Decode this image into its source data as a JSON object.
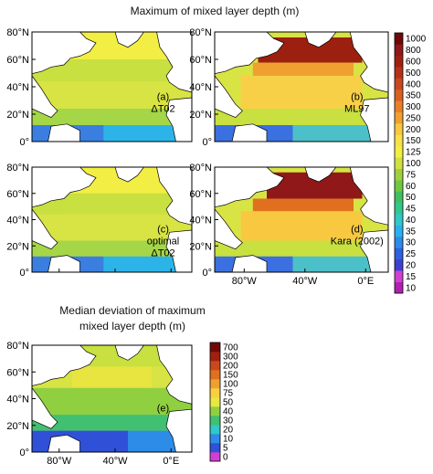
{
  "top_title": "Maximum of mixed layer depth (m)",
  "bottom_title_line1": "Median deviation of maximum",
  "bottom_title_line2": "mixed layer depth (m)",
  "lat_ticks": [
    "0°",
    "20°N",
    "40°N",
    "60°N",
    "80°N"
  ],
  "lon_ticks": [
    "80°W",
    "40°W",
    "0°E"
  ],
  "panels": [
    {
      "id": "a",
      "label_lines": [
        "(a)",
        "ΔT02"
      ]
    },
    {
      "id": "b",
      "label_lines": [
        "(b)",
        "ML97"
      ]
    },
    {
      "id": "c",
      "label_lines": [
        "(c)",
        "optimal",
        "ΔT02"
      ]
    },
    {
      "id": "d",
      "label_lines": [
        "(d)",
        "Kara (2002)"
      ]
    },
    {
      "id": "e",
      "label_lines": [
        "(e)"
      ]
    }
  ],
  "chart_data": [
    {
      "type": "heatmap",
      "title": "Maximum of mixed layer depth (m)",
      "panels": [
        "(a) ΔT02",
        "(b) ML97",
        "(c) optimal ΔT02",
        "(d) Kara (2002)"
      ],
      "xlabel": "",
      "ylabel": "",
      "x_ticks": [
        "80°W",
        "40°W",
        "0°E"
      ],
      "y_ticks": [
        "0°",
        "20°N",
        "40°N",
        "60°N",
        "80°N"
      ],
      "xlim": [
        -100,
        15
      ],
      "ylim": [
        0,
        80
      ],
      "colorbar_levels": [
        10,
        15,
        20,
        25,
        30,
        35,
        40,
        45,
        50,
        60,
        75,
        100,
        125,
        150,
        200,
        250,
        300,
        350,
        400,
        500,
        600,
        800,
        1000
      ],
      "colorbar_colors": [
        "#b020b0",
        "#d040d0",
        "#4040d0",
        "#3060e0",
        "#2c8ce8",
        "#28b0f0",
        "#30c8c8",
        "#30c890",
        "#40c060",
        "#70c840",
        "#a0d040",
        "#d0e040",
        "#f0f040",
        "#f8e048",
        "#f8c840",
        "#f0a030",
        "#e88028",
        "#d86020",
        "#c84820",
        "#b83018",
        "#a02010",
        "#901818",
        "#700808"
      ]
    },
    {
      "type": "heatmap",
      "title": "Median deviation of maximum mixed layer depth (m)",
      "panels": [
        "(e)"
      ],
      "xlabel": "",
      "ylabel": "",
      "x_ticks": [
        "80°W",
        "40°W",
        "0°E"
      ],
      "y_ticks": [
        "0°",
        "20°N",
        "40°N",
        "60°N",
        "80°N"
      ],
      "xlim": [
        -100,
        15
      ],
      "ylim": [
        0,
        80
      ],
      "colorbar_levels": [
        0,
        5,
        10,
        20,
        30,
        40,
        50,
        75,
        100,
        150,
        200,
        300,
        700
      ],
      "colorbar_colors": [
        "#d040d0",
        "#3050d8",
        "#2c8ce8",
        "#30c8c8",
        "#40c070",
        "#90d040",
        "#e8e840",
        "#f8d040",
        "#f0a030",
        "#e07020",
        "#c84820",
        "#a02010",
        "#700808"
      ]
    }
  ]
}
